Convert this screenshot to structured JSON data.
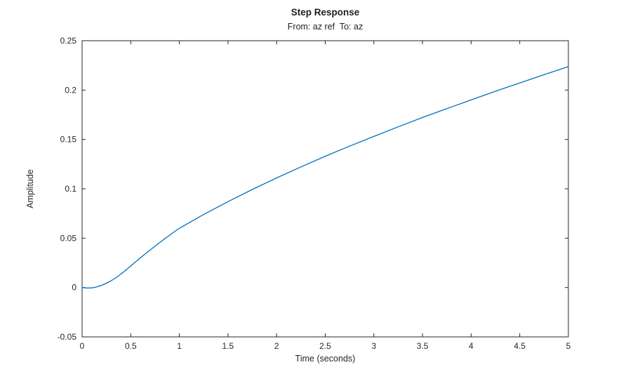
{
  "figure": {
    "background": "#ffffff"
  },
  "chart_data": {
    "type": "line",
    "title": "Step Response",
    "subtitle": "From: az ref  To: az",
    "xlabel": "Time (seconds)",
    "ylabel": "Amplitude",
    "xlim": [
      0,
      5
    ],
    "ylim": [
      -0.05,
      0.25
    ],
    "xticks": [
      0,
      0.5,
      1,
      1.5,
      2,
      2.5,
      3,
      3.5,
      4,
      4.5,
      5
    ],
    "xtick_labels": [
      "0",
      "0.5",
      "1",
      "1.5",
      "2",
      "2.5",
      "3",
      "3.5",
      "4",
      "4.5",
      "5"
    ],
    "yticks": [
      -0.05,
      0,
      0.05,
      0.1,
      0.15,
      0.2,
      0.25
    ],
    "ytick_labels": [
      "-0.05",
      "0",
      "0.05",
      "0.1",
      "0.15",
      "0.2",
      "0.25"
    ],
    "grid": false,
    "legend_position": "none",
    "box": true,
    "axis_color": "#262626",
    "series": [
      {
        "name": "step response az ref to az",
        "color": "#0072BD",
        "x": [
          0,
          0.05,
          0.1,
          0.15,
          0.2,
          0.25,
          0.3,
          0.35,
          0.4,
          0.45,
          0.5,
          0.55,
          0.6,
          0.65,
          0.7,
          0.75,
          0.8,
          0.85,
          0.9,
          0.95,
          1.0,
          1.25,
          1.5,
          1.75,
          2.0,
          2.25,
          2.5,
          2.75,
          3.0,
          3.25,
          3.5,
          3.75,
          4.0,
          4.25,
          4.5,
          4.75,
          5.0
        ],
        "y": [
          0,
          -0.0005,
          -0.0004,
          0.0006,
          0.0022,
          0.0044,
          0.007,
          0.0101,
          0.0136,
          0.0176,
          0.0218,
          0.026,
          0.0302,
          0.0342,
          0.0381,
          0.0419,
          0.0457,
          0.0494,
          0.053,
          0.0566,
          0.06,
          0.074,
          0.087,
          0.0993,
          0.111,
          0.1222,
          0.133,
          0.1432,
          0.153,
          0.1628,
          0.1722,
          0.1812,
          0.19,
          0.1988,
          0.2072,
          0.2156,
          0.2238
        ]
      }
    ]
  }
}
